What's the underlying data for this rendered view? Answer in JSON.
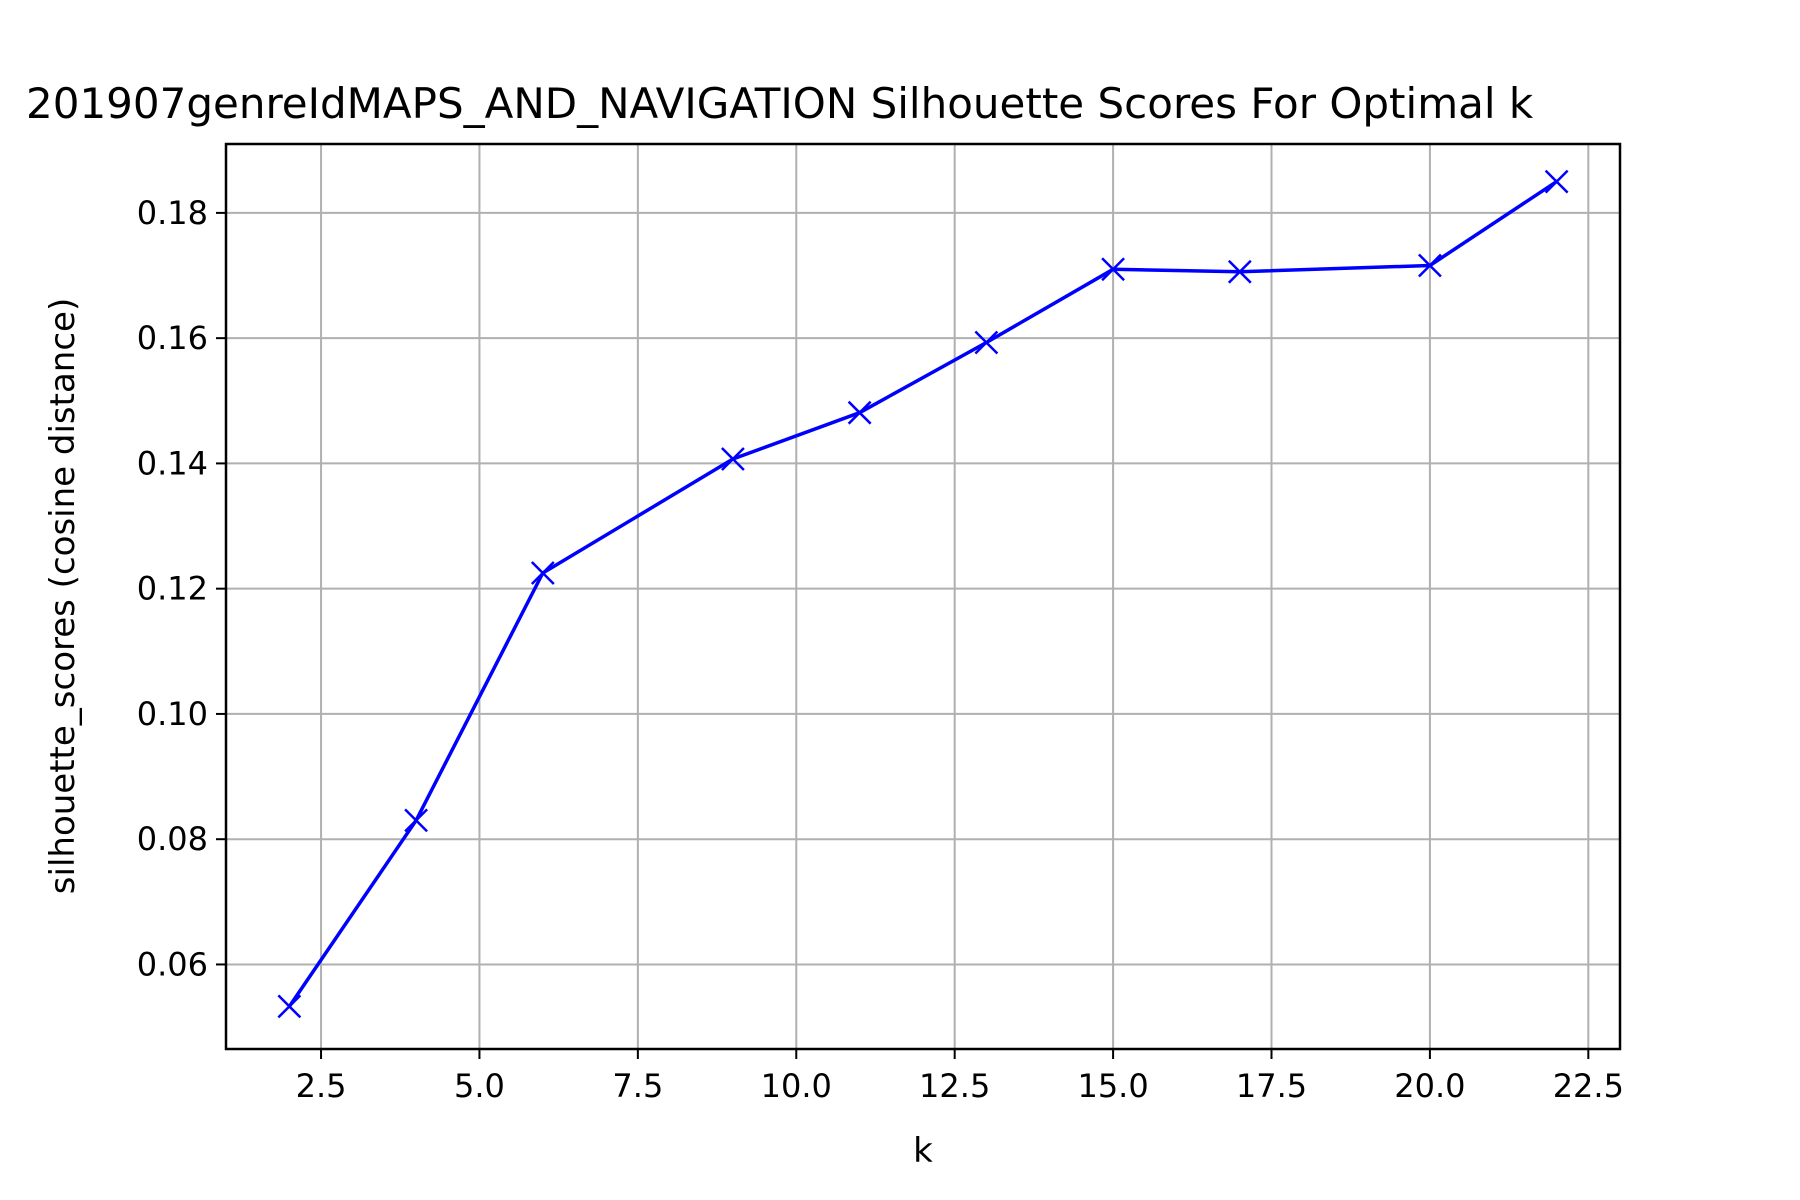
{
  "chart_data": {
    "type": "line",
    "title": "201907genreIdMAPS_AND_NAVIGATION Silhouette Scores For Optimal k",
    "xlabel": "k",
    "ylabel": "silhouette_scores (cosine distance)",
    "xlim": [
      1.0,
      23.0
    ],
    "ylim": [
      0.0465,
      0.191
    ],
    "x_ticks": [
      2.5,
      5.0,
      7.5,
      10.0,
      12.5,
      15.0,
      17.5,
      20.0,
      22.5
    ],
    "x_tick_labels": [
      "2.5",
      "5.0",
      "7.5",
      "10.0",
      "12.5",
      "15.0",
      "17.5",
      "20.0",
      "22.5"
    ],
    "y_ticks": [
      0.06,
      0.08,
      0.1,
      0.12,
      0.14,
      0.16,
      0.18
    ],
    "y_tick_labels": [
      "0.06",
      "0.08",
      "0.10",
      "0.12",
      "0.14",
      "0.16",
      "0.18"
    ],
    "grid": true,
    "series": [
      {
        "x": [
          2,
          4,
          6,
          9,
          11,
          13,
          15,
          17,
          20,
          22
        ],
        "values": [
          0.0533,
          0.083,
          0.1225,
          0.1407,
          0.1481,
          0.1593,
          0.171,
          0.1706,
          0.1716,
          0.185
        ],
        "color": "#0000ff",
        "marker": "x"
      }
    ]
  }
}
